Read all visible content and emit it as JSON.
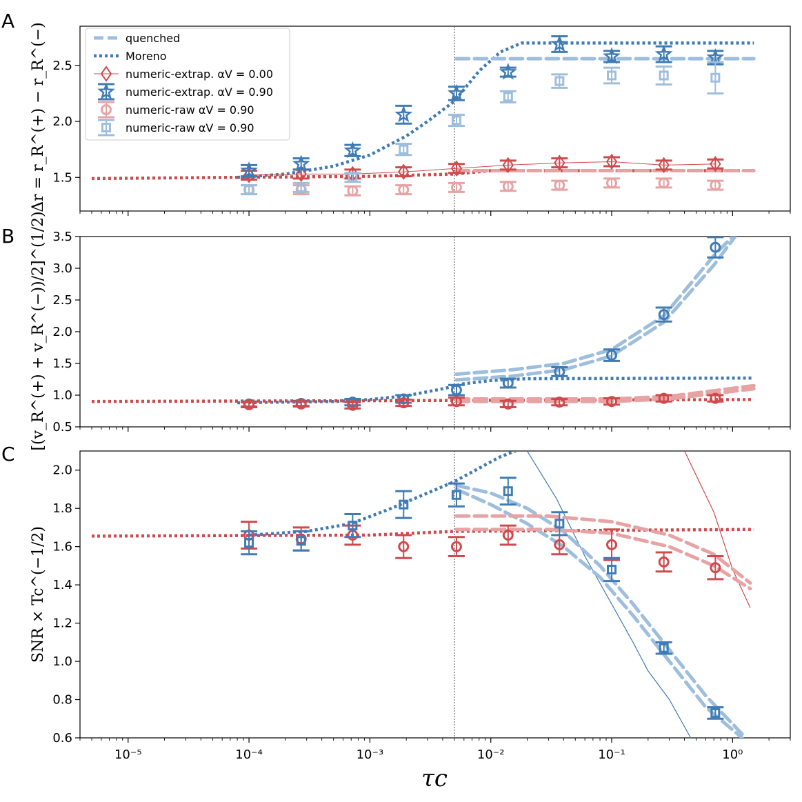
{
  "figure": {
    "xlabel": "τc",
    "xlabel_sub": "c"
  },
  "colors": {
    "blue_dark": "#3f7bb5",
    "blue_light": "#9dbedc",
    "red_dark": "#d0494d",
    "red_light": "#e7a3a4"
  },
  "legend": [
    {
      "label": "quenched",
      "style": "dashed-light-blue"
    },
    {
      "label": "Moreno",
      "style": "dotted-blue"
    },
    {
      "label": "numeric-extrap. αV = 0.00",
      "style": "diamond-red"
    },
    {
      "label": "numeric-extrap. αV = 0.90",
      "style": "star-blue"
    },
    {
      "label": "numeric-raw αV = 0.90",
      "style": "circle-light-red"
    },
    {
      "label": "numeric-raw αV = 0.90",
      "style": "square-light-blue"
    }
  ],
  "chart_data": [
    {
      "panel": "A",
      "type": "scatter",
      "ylabel": "Δr = r_R^(+) − r_R^(−)",
      "xscale": "log",
      "xlim": [
        4e-06,
        3
      ],
      "ylim": [
        1.2,
        2.85
      ],
      "yticks": [
        1.5,
        2.0,
        2.5
      ],
      "ytick_labels": [
        "1.5",
        "2.0",
        "2.5"
      ],
      "vline_x": 0.005,
      "x_points": [
        0.0001,
        0.00027,
        0.00072,
        0.0019,
        0.0052,
        0.0139,
        0.037,
        0.1,
        0.27,
        0.72
      ],
      "series": [
        {
          "name": "numeric-extrap. αV = 0.00",
          "marker": "diamond",
          "color": "red_dark",
          "line": "thin",
          "values": [
            1.52,
            1.53,
            1.53,
            1.55,
            1.58,
            1.61,
            1.63,
            1.64,
            1.61,
            1.62
          ],
          "err": [
            0.04,
            0.04,
            0.04,
            0.04,
            0.04,
            0.04,
            0.04,
            0.04,
            0.04,
            0.04
          ]
        },
        {
          "name": "numeric-extrap. αV = 0.90",
          "marker": "star",
          "color": "blue_dark",
          "values": [
            1.56,
            1.62,
            1.74,
            2.06,
            2.25,
            2.44,
            2.69,
            2.58,
            2.6,
            2.57
          ],
          "err": [
            0.05,
            0.05,
            0.05,
            0.08,
            0.06,
            0.04,
            0.07,
            0.05,
            0.07,
            0.06
          ]
        },
        {
          "name": "numeric-raw αV = 0.90",
          "marker": "circle",
          "color": "red_light",
          "values": [
            1.39,
            1.39,
            1.38,
            1.39,
            1.41,
            1.42,
            1.43,
            1.45,
            1.45,
            1.43
          ],
          "err": [
            0.04,
            0.04,
            0.04,
            0.04,
            0.04,
            0.04,
            0.04,
            0.04,
            0.04,
            0.04
          ]
        },
        {
          "name": "numeric-raw αV = 0.90",
          "marker": "square",
          "color": "blue_light",
          "values": [
            1.39,
            1.41,
            1.5,
            1.75,
            2.01,
            2.22,
            2.36,
            2.41,
            2.41,
            2.39
          ],
          "err": [
            0.04,
            0.04,
            0.04,
            0.05,
            0.05,
            0.05,
            0.06,
            0.07,
            0.08,
            0.14
          ]
        }
      ],
      "lines": [
        {
          "name": "Moreno blue",
          "style": "dotted",
          "color": "blue_dark",
          "x": [
            8e-05,
            0.0002,
            0.0005,
            0.001,
            0.002,
            0.003,
            0.005,
            0.008,
            0.012,
            0.018,
            1.5
          ],
          "y": [
            1.5,
            1.53,
            1.6,
            1.7,
            1.87,
            2.0,
            2.18,
            2.45,
            2.62,
            2.7,
            2.7
          ]
        },
        {
          "name": "Moreno red",
          "style": "dotted",
          "color": "red_dark",
          "x": [
            5e-06,
            0.001,
            0.005,
            0.01,
            1.5
          ],
          "y": [
            1.49,
            1.51,
            1.53,
            1.56,
            1.56
          ]
        },
        {
          "name": "quenched blue",
          "style": "dashed",
          "color": "blue_light",
          "x": [
            0.0052,
            1.5
          ],
          "y": [
            2.56,
            2.56
          ]
        },
        {
          "name": "quenched red",
          "style": "dashed",
          "color": "red_light",
          "x": [
            0.0052,
            1.5
          ],
          "y": [
            1.56,
            1.56
          ]
        }
      ]
    },
    {
      "panel": "B",
      "type": "scatter",
      "ylabel": "[(v_R^(+) + v_R^(−))/2]^(1/2)",
      "xscale": "log",
      "xlim": [
        4e-06,
        3
      ],
      "ylim": [
        0.5,
        3.5
      ],
      "yticks": [
        0.5,
        1.0,
        1.5,
        2.0,
        2.5,
        3.0,
        3.5
      ],
      "ytick_labels": [
        "0.5",
        "1.0",
        "1.5",
        "2.0",
        "2.5",
        "3.0",
        "3.5"
      ],
      "vline_x": 0.005,
      "x_points": [
        0.0001,
        0.00027,
        0.00072,
        0.0019,
        0.0052,
        0.0139,
        0.037,
        0.1,
        0.27,
        0.72
      ],
      "series": [
        {
          "name": "numeric-raw αV = 0.90 (blue)",
          "marker": "circle",
          "color": "blue_dark",
          "values": [
            0.86,
            0.87,
            0.89,
            0.94,
            1.08,
            1.19,
            1.37,
            1.63,
            2.27,
            3.33
          ],
          "err": [
            0.04,
            0.04,
            0.05,
            0.06,
            0.08,
            0.07,
            0.07,
            0.09,
            0.11,
            0.16
          ]
        },
        {
          "name": "numeric-raw αV = 0.90 (red)",
          "marker": "circle",
          "color": "red_dark",
          "values": [
            0.85,
            0.86,
            0.84,
            0.88,
            0.9,
            0.86,
            0.89,
            0.9,
            0.95,
            0.95
          ],
          "err": [
            0.04,
            0.04,
            0.05,
            0.05,
            0.06,
            0.05,
            0.05,
            0.05,
            0.05,
            0.05
          ]
        }
      ],
      "lines": [
        {
          "name": "Moreno blue",
          "style": "dotted",
          "color": "blue_dark",
          "x": [
            8e-05,
            0.0005,
            0.001,
            0.002,
            0.004,
            0.006,
            0.01,
            0.02,
            1.5
          ],
          "y": [
            0.88,
            0.9,
            0.93,
            0.99,
            1.1,
            1.18,
            1.23,
            1.26,
            1.27
          ]
        },
        {
          "name": "Moreno red",
          "style": "dotted",
          "color": "red_dark",
          "x": [
            5e-06,
            1.5
          ],
          "y": [
            0.9,
            0.93
          ]
        },
        {
          "name": "quenched blue upper",
          "style": "dashed",
          "color": "blue_light",
          "x": [
            0.0052,
            0.015,
            0.04,
            0.1,
            0.27,
            0.7,
            1.0
          ],
          "y": [
            1.33,
            1.4,
            1.5,
            1.72,
            2.25,
            3.2,
            3.5
          ]
        },
        {
          "name": "quenched blue lower",
          "style": "dashed",
          "color": "blue_light",
          "x": [
            0.0052,
            0.015,
            0.04,
            0.1,
            0.27,
            0.7,
            1.05
          ],
          "y": [
            1.24,
            1.3,
            1.4,
            1.62,
            2.15,
            3.05,
            3.5
          ]
        },
        {
          "name": "quenched red upper",
          "style": "dashed",
          "color": "red_light",
          "x": [
            0.0052,
            0.1,
            0.3,
            1.5
          ],
          "y": [
            0.94,
            0.94,
            0.98,
            1.15
          ]
        },
        {
          "name": "quenched red lower",
          "style": "dashed",
          "color": "red_light",
          "x": [
            0.0052,
            0.1,
            0.3,
            1.5
          ],
          "y": [
            0.9,
            0.9,
            0.94,
            1.1
          ]
        }
      ]
    },
    {
      "panel": "C",
      "type": "scatter",
      "ylabel": "SNR × Tc^(−1/2)",
      "xlabel": "τc",
      "xscale": "log",
      "xlim": [
        4e-06,
        3
      ],
      "ylim": [
        0.6,
        2.1
      ],
      "yticks": [
        0.6,
        0.8,
        1.0,
        1.2,
        1.4,
        1.6,
        1.8,
        2.0
      ],
      "ytick_labels": [
        "0.6",
        "0.8",
        "1.0",
        "1.2",
        "1.4",
        "1.6",
        "1.8",
        "2.0"
      ],
      "xticks": [
        1e-05,
        0.0001,
        0.001,
        0.01,
        0.1,
        1
      ],
      "xtick_labels": [
        "10⁻⁵",
        "10⁻⁴",
        "10⁻³",
        "10⁻²",
        "10⁻¹",
        "10⁰"
      ],
      "vline_x": 0.005,
      "x_points": [
        0.0001,
        0.00027,
        0.00072,
        0.0019,
        0.0052,
        0.0139,
        0.037,
        0.1,
        0.27,
        0.72
      ],
      "series": [
        {
          "name": "numeric-raw αV = 0.90 (red)",
          "marker": "circle",
          "color": "red_dark",
          "values": [
            1.66,
            1.64,
            1.66,
            1.6,
            1.6,
            1.66,
            1.61,
            1.61,
            1.52,
            1.49
          ],
          "err": [
            0.07,
            0.06,
            0.05,
            0.06,
            0.05,
            0.05,
            0.05,
            0.08,
            0.05,
            0.06
          ]
        },
        {
          "name": "numeric-raw αV = 0.90 (blue)",
          "marker": "square",
          "color": "blue_dark",
          "values": [
            1.62,
            1.63,
            1.71,
            1.82,
            1.87,
            1.89,
            1.72,
            1.48,
            1.07,
            0.73
          ],
          "err": [
            0.06,
            0.05,
            0.06,
            0.07,
            0.06,
            0.07,
            0.06,
            0.06,
            0.03,
            0.03
          ]
        }
      ],
      "lines": [
        {
          "name": "Moreno blue",
          "style": "dotted",
          "color": "blue_dark",
          "x": [
            0.0001,
            0.0003,
            0.0007,
            0.0015,
            0.003,
            0.005,
            0.008,
            0.012,
            0.016
          ],
          "y": [
            1.66,
            1.68,
            1.72,
            1.8,
            1.88,
            1.94,
            2.01,
            2.07,
            2.1
          ]
        },
        {
          "name": "Moreno red",
          "style": "dotted",
          "color": "red_dark",
          "x": [
            5e-06,
            0.001,
            0.005,
            1.5
          ],
          "y": [
            1.655,
            1.66,
            1.68,
            1.69
          ]
        },
        {
          "name": "thin blue",
          "style": "thin",
          "color": "blue_dark",
          "x": [
            0.02,
            0.035,
            0.06,
            0.1,
            0.15,
            0.2,
            0.3,
            0.45
          ],
          "y": [
            2.1,
            1.85,
            1.55,
            1.3,
            1.1,
            0.95,
            0.8,
            0.6
          ]
        },
        {
          "name": "thin red",
          "style": "thin",
          "color": "red_dark",
          "x": [
            0.4,
            0.7,
            1.0,
            1.4
          ],
          "y": [
            2.1,
            1.78,
            1.48,
            1.28
          ]
        },
        {
          "name": "quenched blue upper",
          "style": "dashed",
          "color": "blue_light",
          "x": [
            0.0052,
            0.01,
            0.02,
            0.04,
            0.08,
            0.15,
            0.3,
            0.6,
            1.2
          ],
          "y": [
            1.92,
            1.88,
            1.8,
            1.68,
            1.5,
            1.3,
            1.06,
            0.82,
            0.62
          ]
        },
        {
          "name": "quenched blue lower",
          "style": "dashed",
          "color": "blue_light",
          "x": [
            0.0052,
            0.01,
            0.02,
            0.04,
            0.08,
            0.15,
            0.3,
            0.6,
            1.2
          ],
          "y": [
            1.9,
            1.82,
            1.72,
            1.6,
            1.44,
            1.24,
            1.0,
            0.76,
            0.6
          ]
        },
        {
          "name": "quenched red upper",
          "style": "dashed",
          "color": "red_light",
          "x": [
            0.0052,
            0.03,
            0.1,
            0.3,
            0.7,
            1.4
          ],
          "y": [
            1.76,
            1.76,
            1.73,
            1.66,
            1.56,
            1.41
          ]
        },
        {
          "name": "quenched red lower",
          "style": "dashed",
          "color": "red_light",
          "x": [
            0.0052,
            0.03,
            0.1,
            0.3,
            0.7,
            1.4
          ],
          "y": [
            1.69,
            1.69,
            1.67,
            1.6,
            1.5,
            1.38
          ]
        }
      ]
    }
  ],
  "panels": [
    {
      "letter": "A"
    },
    {
      "letter": "B"
    },
    {
      "letter": "C"
    }
  ]
}
